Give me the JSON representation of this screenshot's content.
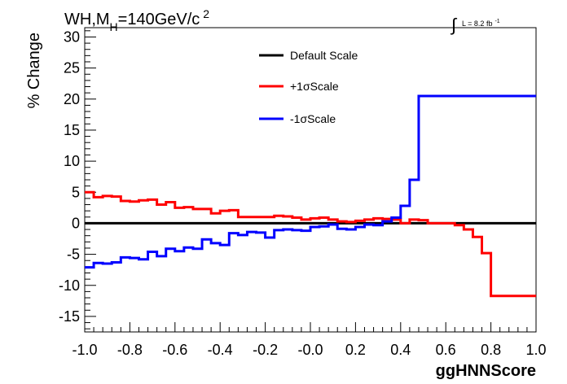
{
  "chart_data": {
    "type": "line",
    "title_main": "WH,M",
    "title_sub": "H",
    "title_rest": "=140GeV/c",
    "title_sup": "2",
    "lumi_label": "L = 8.2 fb",
    "lumi_sup": "-1",
    "integral_symbol": "∫",
    "xlabel": "ggHNNScore",
    "ylabel": "% Change",
    "xlim": [
      -1.0,
      1.0
    ],
    "ylim": [
      -17.5,
      31.5
    ],
    "x_ticks": [
      -1.0,
      -0.8,
      -0.6,
      -0.4,
      -0.2,
      0.0,
      0.2,
      0.4,
      0.6,
      0.8,
      1.0
    ],
    "x_tick_labels": [
      "-1.0",
      "-0.8",
      "-0.6",
      "-0.4",
      "-0.2",
      "-0.0",
      "0.2",
      "0.4",
      "0.6",
      "0.8",
      "1.0"
    ],
    "y_ticks": [
      -15,
      -10,
      -5,
      0,
      5,
      10,
      15,
      20,
      25,
      30
    ],
    "y_tick_labels": [
      "-15",
      "-10",
      "-5",
      "0",
      "5",
      "10",
      "15",
      "20",
      "25",
      "30"
    ],
    "bin_width": 0.04,
    "series": [
      {
        "name": "Default Scale",
        "color": "#000000",
        "values": [
          0,
          0,
          0,
          0,
          0,
          0,
          0,
          0,
          0,
          0,
          0,
          0,
          0,
          0,
          0,
          0,
          0,
          0,
          0,
          0,
          0,
          0,
          0,
          0,
          0,
          0,
          0,
          0,
          0,
          0,
          0,
          0,
          0,
          0,
          0,
          0,
          0,
          0,
          0,
          0,
          0,
          0,
          0,
          0,
          0,
          0,
          0,
          0,
          0,
          0
        ]
      },
      {
        "name": "+1σScale",
        "color": "#ff0000",
        "values": [
          5.0,
          4.2,
          4.4,
          4.3,
          3.6,
          3.5,
          3.7,
          3.8,
          3.0,
          3.4,
          2.5,
          2.6,
          2.3,
          2.3,
          1.6,
          2.0,
          2.1,
          1.0,
          1.0,
          1.0,
          1.0,
          1.2,
          1.1,
          0.9,
          0.6,
          0.8,
          0.9,
          0.6,
          0.3,
          0.2,
          0.4,
          0.6,
          0.8,
          0.7,
          0.6,
          0.0,
          0.6,
          0.5,
          0.0,
          0.0,
          0.0,
          -0.3,
          -1.0,
          -2.2,
          -4.8,
          -11.7,
          -11.7,
          -11.7,
          -11.7,
          -11.7
        ],
        "values_note": ""
      },
      {
        "name": "-1σScale",
        "color": "#0000ff",
        "values": [
          -7.1,
          -6.4,
          -6.5,
          -6.3,
          -5.5,
          -5.6,
          -5.8,
          -4.6,
          -5.3,
          -4.1,
          -4.5,
          -3.9,
          -4.1,
          -2.6,
          -3.2,
          -3.5,
          -1.6,
          -1.9,
          -1.4,
          -1.5,
          -2.3,
          -1.1,
          -1.0,
          -1.1,
          -1.2,
          -0.6,
          -0.5,
          -0.2,
          -0.9,
          -1.0,
          -0.6,
          -0.2,
          -0.3,
          0.3,
          0.9,
          2.8,
          7.0,
          20.5,
          20.5,
          20.5,
          20.5,
          20.5,
          20.5,
          20.5,
          20.5,
          20.5,
          20.5,
          20.5,
          20.5,
          20.5
        ]
      }
    ],
    "legend_position": "top-center",
    "grid": false
  }
}
